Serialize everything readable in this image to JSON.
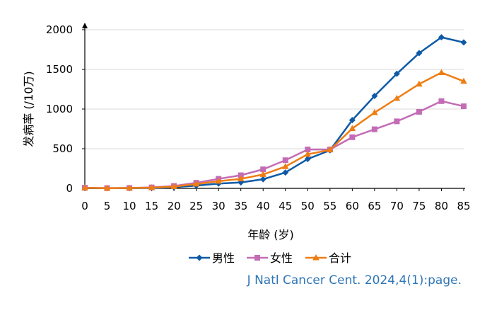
{
  "chart_data": {
    "type": "line",
    "xlabel": "年龄 (岁)",
    "ylabel": "发病率 (/10万)",
    "x": [
      0,
      5,
      10,
      15,
      20,
      25,
      30,
      35,
      40,
      45,
      50,
      55,
      60,
      65,
      70,
      75,
      80,
      85
    ],
    "xlim": [
      0,
      85
    ],
    "ylim": [
      0,
      2000
    ],
    "yticks": [
      0,
      500,
      1000,
      1500,
      2000
    ],
    "grid": true,
    "legend_position": "bottom",
    "series": [
      {
        "name": "男性",
        "color": "#0e5aa7",
        "marker": "diamond",
        "values": [
          3,
          2,
          3,
          6,
          15,
          35,
          60,
          75,
          115,
          200,
          370,
          480,
          860,
          1165,
          1445,
          1705,
          1905,
          1840
        ]
      },
      {
        "name": "女性",
        "color": "#c36cb5",
        "marker": "square",
        "values": [
          8,
          3,
          5,
          12,
          30,
          70,
          120,
          165,
          240,
          355,
          490,
          490,
          645,
          745,
          845,
          965,
          1100,
          1035
        ]
      },
      {
        "name": "合计",
        "color": "#ee7d14",
        "marker": "triangle",
        "values": [
          6,
          2,
          4,
          9,
          22,
          55,
          90,
          120,
          175,
          275,
          430,
          485,
          755,
          955,
          1135,
          1315,
          1460,
          1350
        ]
      }
    ]
  },
  "source": "J Natl Cancer Cent. 2024,4(1):page."
}
